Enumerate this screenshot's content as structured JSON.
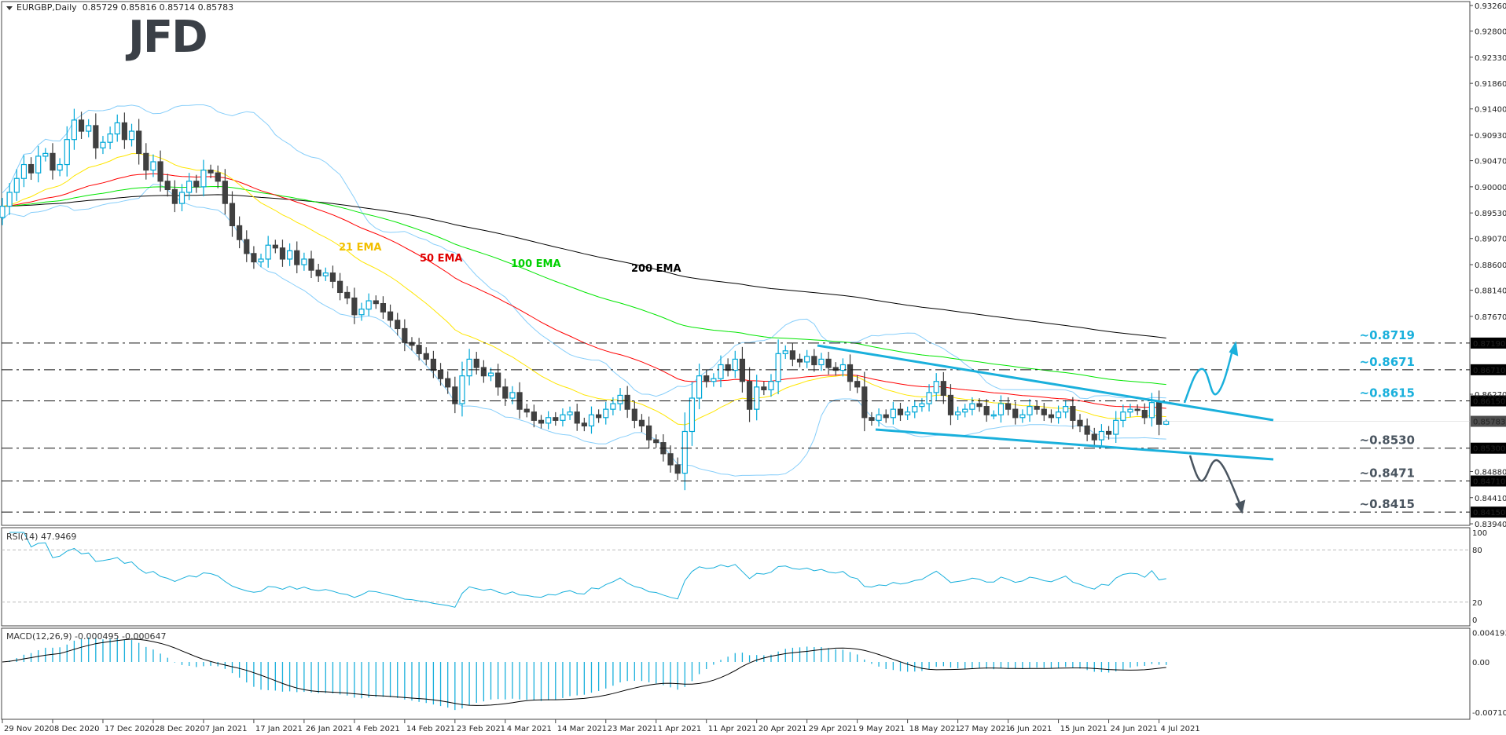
{
  "header": {
    "symbol": "EURGBP,Daily",
    "ohlc_text": "0.85729 0.85816 0.85714 0.85783"
  },
  "logo": {
    "text": "JFD"
  },
  "price_axis": {
    "ticks": [
      "0.93260",
      "0.92800",
      "0.92330",
      "0.91860",
      "0.91400",
      "0.90930",
      "0.90470",
      "0.90000",
      "0.89530",
      "0.89070",
      "0.88600",
      "0.88140",
      "0.87670",
      "0.86270",
      "0.84880",
      "0.84410",
      "0.83940"
    ]
  },
  "current_price": {
    "label": "0.85783",
    "color": "#4d4d4d"
  },
  "levels": [
    {
      "price": 0.8719,
      "axis_label": "0.87190",
      "note": "~0.8719",
      "color": "#1ab0dc"
    },
    {
      "price": 0.8671,
      "axis_label": "0.86710",
      "note": "~0.8671",
      "color": "#1ab0dc"
    },
    {
      "price": 0.8615,
      "axis_label": "0.86150",
      "note": "~0.8615",
      "color": "#1ab0dc"
    },
    {
      "price": 0.853,
      "axis_label": "0.85300",
      "note": "~0.8530",
      "color": "#4a5560"
    },
    {
      "price": 0.8471,
      "axis_label": "0.84710",
      "note": "~0.8471",
      "color": "#4a5560"
    },
    {
      "price": 0.8415,
      "axis_label": "0.84150",
      "note": "~0.8415",
      "color": "#4a5560"
    }
  ],
  "ema_labels": [
    {
      "text": "21 EMA",
      "color": "#f2bf00"
    },
    {
      "text": "50 EMA",
      "color": "#e00000"
    },
    {
      "text": "100 EMA",
      "color": "#00d000"
    },
    {
      "text": "200 EMA",
      "color": "#000000"
    }
  ],
  "rsi": {
    "label": "RSI(14) 47.9469",
    "ticks": [
      "100",
      "80",
      "20",
      "0"
    ]
  },
  "macd": {
    "label": "MACD(12,26,9) -0.000495 -0.000647",
    "ticks": [
      "0.004193",
      "0.00",
      "-0.007103"
    ]
  },
  "dates": [
    "29 Nov 2020",
    "8 Dec 2020",
    "17 Dec 2020",
    "28 Dec 2020",
    "7 Jan 2021",
    "17 Jan 2021",
    "26 Jan 2021",
    "4 Feb 2021",
    "14 Feb 2021",
    "23 Feb 2021",
    "4 Mar 2021",
    "14 Mar 2021",
    "23 Mar 2021",
    "1 Apr 2021",
    "11 Apr 2021",
    "20 Apr 2021",
    "29 Apr 2021",
    "9 May 2021",
    "18 May 2021",
    "27 May 2021",
    "6 Jun 2021",
    "15 Jun 2021",
    "24 Jun 2021",
    "4 Jul 2021"
  ],
  "chart_data": {
    "type": "candlestick",
    "symbol": "EURGBP",
    "timeframe": "Daily",
    "ylim": [
      0.8394,
      0.9326
    ],
    "last_bar": {
      "open": 0.85729,
      "high": 0.85816,
      "low": 0.85714,
      "close": 0.85783
    },
    "closes": [
      0.8965,
      0.899,
      0.9015,
      0.904,
      0.9025,
      0.9055,
      0.906,
      0.903,
      0.904,
      0.9085,
      0.912,
      0.91,
      0.911,
      0.907,
      0.908,
      0.9095,
      0.9115,
      0.9085,
      0.91,
      0.906,
      0.903,
      0.9045,
      0.901,
      0.8995,
      0.897,
      0.899,
      0.901,
      0.9,
      0.903,
      0.9025,
      0.901,
      0.897,
      0.893,
      0.8905,
      0.888,
      0.8865,
      0.887,
      0.8895,
      0.889,
      0.887,
      0.8885,
      0.886,
      0.887,
      0.885,
      0.884,
      0.8845,
      0.883,
      0.881,
      0.88,
      0.877,
      0.878,
      0.8795,
      0.879,
      0.8775,
      0.876,
      0.8745,
      0.872,
      0.8715,
      0.87,
      0.869,
      0.867,
      0.8655,
      0.864,
      0.861,
      0.866,
      0.869,
      0.8675,
      0.866,
      0.8665,
      0.864,
      0.862,
      0.863,
      0.86,
      0.8595,
      0.858,
      0.8575,
      0.8585,
      0.858,
      0.859,
      0.8595,
      0.8575,
      0.857,
      0.859,
      0.8585,
      0.86,
      0.861,
      0.8625,
      0.86,
      0.858,
      0.857,
      0.8545,
      0.854,
      0.852,
      0.85,
      0.8485,
      0.856,
      0.862,
      0.866,
      0.865,
      0.8655,
      0.868,
      0.867,
      0.869,
      0.865,
      0.86,
      0.864,
      0.8635,
      0.865,
      0.87,
      0.8705,
      0.869,
      0.8685,
      0.8695,
      0.868,
      0.869,
      0.8675,
      0.867,
      0.868,
      0.865,
      0.864,
      0.8585,
      0.858,
      0.859,
      0.8585,
      0.86,
      0.859,
      0.8595,
      0.8605,
      0.861,
      0.863,
      0.865,
      0.8625,
      0.859,
      0.8595,
      0.86,
      0.861,
      0.8605,
      0.859,
      0.859,
      0.861,
      0.86,
      0.8585,
      0.859,
      0.8605,
      0.86,
      0.859,
      0.8585,
      0.8595,
      0.8605,
      0.858,
      0.857,
      0.8555,
      0.8545,
      0.856,
      0.8555,
      0.858,
      0.8595,
      0.86,
      0.8598,
      0.8585,
      0.8612,
      0.8573,
      0.8578
    ],
    "indicators": [
      "EMA 21",
      "EMA 50",
      "EMA 100",
      "EMA 200",
      "Bollinger Bands 20",
      "RSI 14",
      "MACD 12,26,9"
    ],
    "colors": {
      "bull": "#00a8d8",
      "bear": "#404040",
      "ema21": "#ffe600",
      "ema50": "#ff0000",
      "ema100": "#00e600",
      "ema200": "#000000",
      "bollinger": "#87cefa",
      "trendline": "#1ab0dc",
      "rsi": "#1ab0dc",
      "macd_hist": "#1ab0dc",
      "macd_signal": "#000000"
    },
    "trendlines": [
      {
        "name": "upper",
        "from": {
          "date": "29 Apr 2021",
          "price": 0.8721
        },
        "to": {
          "price": 0.857
        }
      },
      {
        "name": "lower",
        "from": {
          "date": "10 May 2021",
          "price": 0.8563
        },
        "to": {
          "price": 0.85
        }
      }
    ],
    "scenarios": [
      {
        "direction": "up",
        "target": 0.8719,
        "color": "#1ab0dc"
      },
      {
        "direction": "down",
        "target": 0.8415,
        "color": "#4a5560"
      }
    ],
    "rsi_levels": [
      80,
      20
    ],
    "grid": false
  }
}
